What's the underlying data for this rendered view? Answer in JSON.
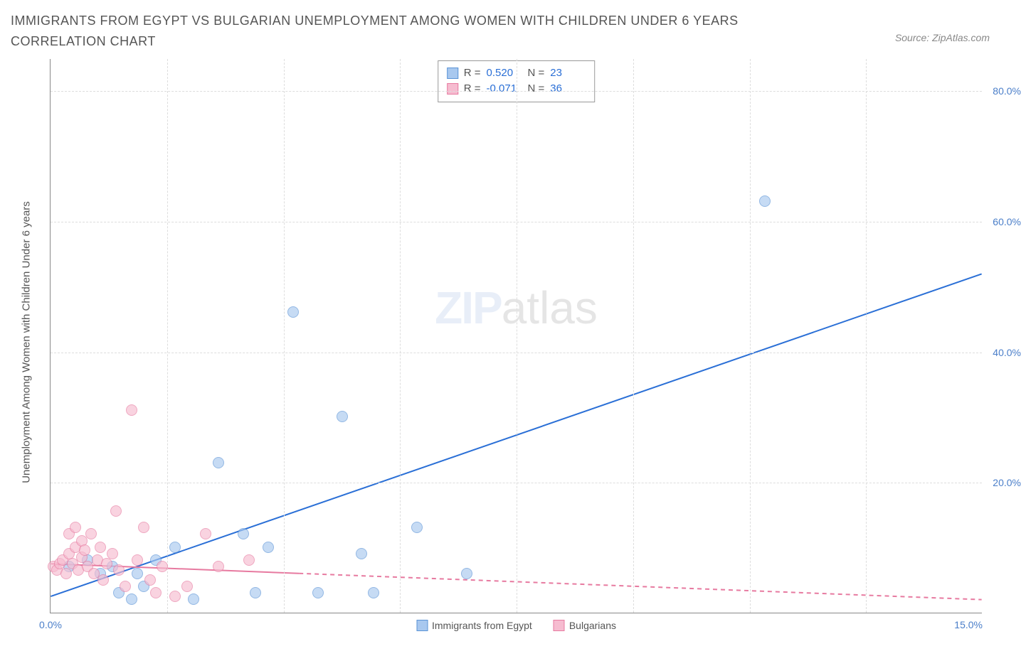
{
  "title": "IMMIGRANTS FROM EGYPT VS BULGARIAN UNEMPLOYMENT AMONG WOMEN WITH CHILDREN UNDER 6 YEARS CORRELATION CHART",
  "source": "Source: ZipAtlas.com",
  "ylabel": "Unemployment Among Women with Children Under 6 years",
  "watermark_a": "ZIP",
  "watermark_b": "atlas",
  "chart": {
    "type": "scatter",
    "background_color": "#ffffff",
    "grid_color": "#dddddd",
    "axis_color": "#888888",
    "tick_label_color": "#4a7ec9",
    "xlim": [
      0,
      15
    ],
    "ylim": [
      0,
      85
    ],
    "xticks": [
      0,
      15
    ],
    "xtick_labels": [
      "0.0%",
      "15.0%"
    ],
    "yticks": [
      20,
      40,
      60,
      80
    ],
    "ytick_labels": [
      "20.0%",
      "40.0%",
      "60.0%",
      "80.0%"
    ],
    "x_gridlines_count": 7,
    "series": [
      {
        "name": "Immigrants from Egypt",
        "fill_color": "#a8c8ef",
        "stroke_color": "#5a93d6",
        "marker_size": 16,
        "R": "0.520",
        "N": "23",
        "trend": {
          "x1": 0,
          "y1": 2.5,
          "x2": 15,
          "y2": 52,
          "color": "#2a6fd6",
          "width": 2,
          "dash": "none"
        },
        "points": [
          [
            0.3,
            7
          ],
          [
            0.6,
            8
          ],
          [
            0.8,
            6
          ],
          [
            1.0,
            7
          ],
          [
            1.1,
            3
          ],
          [
            1.3,
            2
          ],
          [
            1.4,
            6
          ],
          [
            1.5,
            4
          ],
          [
            1.7,
            8
          ],
          [
            2.0,
            10
          ],
          [
            2.3,
            2
          ],
          [
            2.7,
            23
          ],
          [
            3.1,
            12
          ],
          [
            3.3,
            3
          ],
          [
            3.5,
            10
          ],
          [
            3.9,
            46
          ],
          [
            4.3,
            3
          ],
          [
            4.7,
            30
          ],
          [
            5.0,
            9
          ],
          [
            5.2,
            3
          ],
          [
            5.9,
            13
          ],
          [
            6.7,
            6
          ],
          [
            11.5,
            63
          ]
        ]
      },
      {
        "name": "Bulgarians",
        "fill_color": "#f6bcd0",
        "stroke_color": "#e77aa0",
        "marker_size": 16,
        "R": "-0.071",
        "N": "36",
        "trend": {
          "x1": 0,
          "y1": 7.5,
          "x2": 15,
          "y2": 2,
          "color": "#e77aa0",
          "width": 2,
          "dash_solid_until": 4.0
        },
        "points": [
          [
            0.05,
            7
          ],
          [
            0.1,
            6.5
          ],
          [
            0.15,
            7.5
          ],
          [
            0.2,
            8
          ],
          [
            0.25,
            6
          ],
          [
            0.3,
            9
          ],
          [
            0.3,
            12
          ],
          [
            0.35,
            7.5
          ],
          [
            0.4,
            10
          ],
          [
            0.4,
            13
          ],
          [
            0.45,
            6.5
          ],
          [
            0.5,
            8.5
          ],
          [
            0.5,
            11
          ],
          [
            0.55,
            9.5
          ],
          [
            0.6,
            7
          ],
          [
            0.65,
            12
          ],
          [
            0.7,
            6
          ],
          [
            0.75,
            8
          ],
          [
            0.8,
            10
          ],
          [
            0.85,
            5
          ],
          [
            0.9,
            7.5
          ],
          [
            1.0,
            9
          ],
          [
            1.05,
            15.5
          ],
          [
            1.1,
            6.5
          ],
          [
            1.2,
            4
          ],
          [
            1.3,
            31
          ],
          [
            1.4,
            8
          ],
          [
            1.5,
            13
          ],
          [
            1.6,
            5
          ],
          [
            1.7,
            3
          ],
          [
            1.8,
            7
          ],
          [
            2.0,
            2.5
          ],
          [
            2.2,
            4
          ],
          [
            2.5,
            12
          ],
          [
            2.7,
            7
          ],
          [
            3.2,
            8
          ]
        ]
      }
    ]
  },
  "stats_box": {
    "rows": [
      {
        "swatch_fill": "#a8c8ef",
        "swatch_stroke": "#5a93d6",
        "r_label": "R =",
        "r_value": "0.520",
        "n_label": "N =",
        "n_value": "23"
      },
      {
        "swatch_fill": "#f6bcd0",
        "swatch_stroke": "#e77aa0",
        "r_label": "R =",
        "r_value": "-0.071",
        "n_label": "N =",
        "n_value": "36"
      }
    ]
  },
  "legend": {
    "items": [
      {
        "label": "Immigrants from Egypt",
        "fill": "#a8c8ef",
        "stroke": "#5a93d6"
      },
      {
        "label": "Bulgarians",
        "fill": "#f6bcd0",
        "stroke": "#e77aa0"
      }
    ]
  }
}
